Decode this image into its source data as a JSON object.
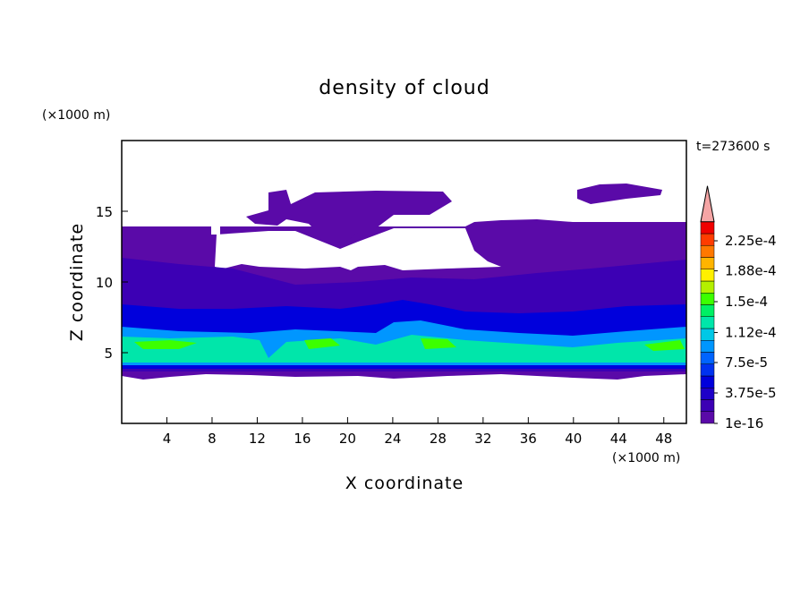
{
  "chart_data": {
    "type": "contour",
    "title": "density of cloud",
    "x_label": "X coordinate",
    "y_label": "Z coordinate",
    "x_unit": "(×1000 m)",
    "y_unit": "(×1000 m)",
    "time_label": "t=273600 s",
    "xlim": [
      0,
      50
    ],
    "ylim": [
      0,
      20
    ],
    "xticks": [
      4,
      8,
      12,
      16,
      20,
      24,
      28,
      32,
      36,
      40,
      44,
      48
    ],
    "yticks": [
      5,
      10,
      15
    ],
    "colorbar_ticks": [
      {
        "value": 1e-16,
        "label": "1e-16"
      },
      {
        "value": 3.75e-05,
        "label": "3.75e-5"
      },
      {
        "value": 7.5e-05,
        "label": "7.5e-5"
      },
      {
        "value": 0.000112,
        "label": "1.12e-4"
      },
      {
        "value": 0.00015,
        "label": "1.5e-4"
      },
      {
        "value": 0.000188,
        "label": "1.88e-4"
      },
      {
        "value": 0.000225,
        "label": "2.25e-4"
      }
    ],
    "colorbar_colors": [
      "#5a0aa8",
      "#3c00b4",
      "#1e00c8",
      "#0000dc",
      "#0032f0",
      "#0064ff",
      "#0096ff",
      "#00c8e6",
      "#00e6aa",
      "#00f064",
      "#3cff00",
      "#b4f000",
      "#fff000",
      "#ffb400",
      "#ff7800",
      "#ff3c00",
      "#f00000"
    ],
    "extend_color": "#f5a5a5"
  }
}
